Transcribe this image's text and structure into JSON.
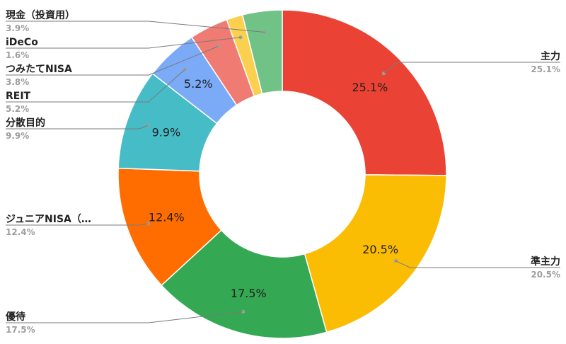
{
  "chart_data": {
    "type": "pie",
    "subtype": "donut",
    "title": "",
    "legend": "leader-line labels",
    "slices": [
      {
        "name": "主力",
        "value": 25.1,
        "label": "25.1%",
        "color": "#ea4335"
      },
      {
        "name": "準主力",
        "value": 20.5,
        "label": "20.5%",
        "color": "#fbbc04"
      },
      {
        "name": "優待",
        "value": 17.5,
        "label": "17.5%",
        "color": "#34a853"
      },
      {
        "name": "ジュニアNISA（…",
        "value": 12.4,
        "label": "12.4%",
        "color": "#ff6d01"
      },
      {
        "name": "分散目的",
        "value": 9.9,
        "label": "9.9%",
        "color": "#46bdc6"
      },
      {
        "name": "REIT",
        "value": 5.2,
        "label": "5.2%",
        "color": "#7baaf7"
      },
      {
        "name": "つみたてNISA",
        "value": 3.8,
        "label": "3.8%",
        "color": "#f07b72"
      },
      {
        "name": "iDeCo",
        "value": 1.6,
        "label": "1.6%",
        "color": "#fcd04f"
      },
      {
        "name": "現金（投資用）",
        "value": 3.9,
        "label": "3.9%",
        "color": "#71c287"
      }
    ]
  }
}
